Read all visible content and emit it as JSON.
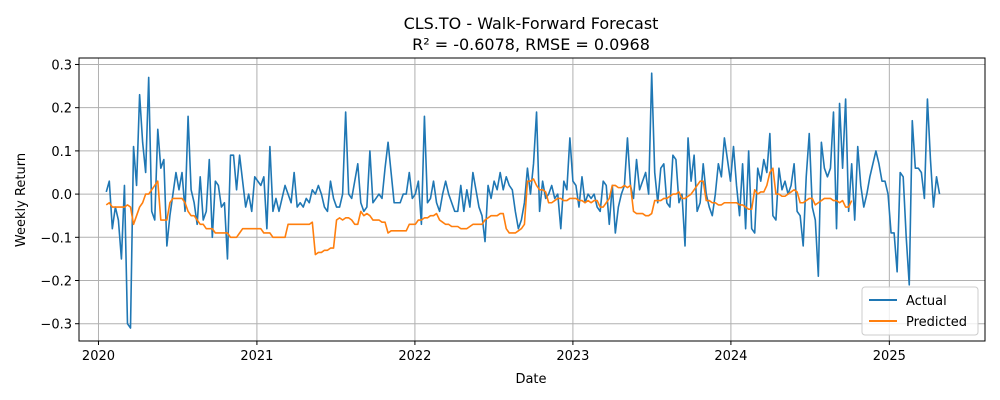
{
  "chart_data": {
    "type": "line",
    "title": "CLS.TO - Walk-Forward Forecast",
    "subtitle": "R² = -0.6078, RMSE = 0.0968",
    "xlabel": "Date",
    "ylabel": "Weekly Return",
    "xlim": [
      "2019-11-17",
      "2025-08-10"
    ],
    "ylim": [
      -0.34,
      0.315
    ],
    "grid": true,
    "legend_position": "lower-right",
    "x_ticks": [
      "2020-01-01",
      "2021-01-01",
      "2022-01-01",
      "2023-01-01",
      "2024-01-01",
      "2025-01-01"
    ],
    "x_tick_labels": [
      "2020",
      "2021",
      "2022",
      "2023",
      "2024",
      "2025"
    ],
    "y_ticks": [
      -0.3,
      -0.2,
      -0.1,
      0.0,
      0.1,
      0.2,
      0.3
    ],
    "y_tick_labels": [
      "−0.3",
      "−0.2",
      "−0.1",
      "0.0",
      "0.1",
      "0.2",
      "0.3"
    ],
    "x_start": "2020-01-19",
    "x_step_days": 7,
    "series": [
      {
        "name": "Actual",
        "color": "#1f77b4",
        "values": [
          0.005,
          0.03,
          -0.08,
          -0.03,
          -0.06,
          -0.15,
          0.02,
          -0.3,
          -0.31,
          0.11,
          0.02,
          0.23,
          0.12,
          0.05,
          0.27,
          -0.04,
          -0.06,
          0.15,
          0.06,
          0.08,
          -0.12,
          -0.05,
          0.0,
          0.05,
          0.01,
          0.05,
          -0.04,
          0.18,
          0.01,
          -0.02,
          -0.07,
          0.04,
          -0.06,
          -0.04,
          0.08,
          -0.1,
          0.03,
          0.02,
          -0.03,
          -0.02,
          -0.15,
          0.09,
          0.09,
          0.01,
          0.09,
          0.03,
          -0.03,
          0.0,
          -0.04,
          0.04,
          0.03,
          0.02,
          0.04,
          -0.08,
          0.11,
          -0.04,
          -0.01,
          -0.04,
          -0.01,
          0.02,
          0.0,
          -0.02,
          0.05,
          -0.03,
          -0.02,
          -0.03,
          -0.01,
          -0.02,
          0.01,
          0.0,
          0.02,
          0.0,
          -0.03,
          -0.04,
          0.03,
          -0.01,
          -0.03,
          -0.03,
          0.0,
          0.19,
          0.0,
          -0.01,
          0.03,
          0.07,
          -0.02,
          -0.04,
          -0.03,
          0.1,
          -0.02,
          -0.01,
          0.0,
          -0.01,
          0.06,
          0.12,
          0.05,
          -0.02,
          -0.02,
          -0.02,
          0.0,
          0.0,
          0.05,
          -0.01,
          0.0,
          0.03,
          -0.07,
          0.18,
          -0.02,
          -0.01,
          0.03,
          -0.02,
          -0.04,
          0.0,
          0.03,
          0.0,
          -0.02,
          -0.04,
          -0.04,
          0.02,
          -0.04,
          0.01,
          -0.03,
          0.05,
          0.01,
          -0.03,
          -0.05,
          -0.11,
          0.02,
          -0.01,
          0.03,
          0.01,
          0.05,
          0.01,
          0.04,
          0.02,
          0.01,
          -0.04,
          -0.08,
          -0.06,
          -0.02,
          0.06,
          0.0,
          0.07,
          0.19,
          -0.04,
          0.03,
          -0.01,
          0.0,
          0.02,
          -0.01,
          0.0,
          -0.08,
          0.03,
          0.01,
          0.13,
          0.03,
          0.02,
          -0.03,
          0.04,
          -0.02,
          0.0,
          -0.01,
          0.0,
          -0.03,
          -0.04,
          0.03,
          0.02,
          -0.07,
          0.02,
          -0.09,
          -0.03,
          0.0,
          0.02,
          0.13,
          0.02,
          -0.01,
          0.08,
          0.01,
          0.03,
          0.05,
          0.0,
          0.28,
          0.05,
          -0.02,
          0.06,
          0.07,
          -0.02,
          -0.03,
          0.09,
          0.08,
          -0.02,
          0.0,
          -0.12,
          0.13,
          0.03,
          0.09,
          -0.04,
          -0.02,
          0.07,
          0.0,
          -0.03,
          -0.05,
          0.0,
          0.07,
          0.04,
          0.13,
          0.08,
          0.03,
          0.11,
          0.02,
          -0.05,
          0.07,
          -0.08,
          0.1,
          -0.08,
          -0.09,
          0.06,
          0.03,
          0.08,
          0.05,
          0.14,
          -0.05,
          -0.06,
          0.06,
          0.01,
          0.03,
          0.0,
          0.02,
          0.07,
          -0.04,
          -0.05,
          -0.12,
          0.04,
          0.14,
          -0.03,
          -0.06,
          -0.19,
          0.12,
          0.06,
          0.04,
          0.06,
          0.19,
          -0.08,
          0.21,
          0.06,
          0.22,
          -0.04,
          0.07,
          -0.06,
          0.11,
          0.02,
          -0.03,
          0.0,
          0.04,
          0.07,
          0.1,
          0.07,
          0.03,
          0.03,
          0.0,
          -0.09,
          -0.09,
          -0.18,
          0.05,
          0.04,
          -0.1,
          -0.21,
          0.17,
          0.06,
          0.06,
          0.05,
          -0.01,
          0.22,
          0.08,
          -0.03,
          0.04,
          0.0
        ]
      },
      {
        "name": "Predicted",
        "color": "#ff7f0e",
        "values": [
          -0.025,
          -0.02,
          -0.03,
          -0.03,
          -0.03,
          -0.03,
          -0.03,
          -0.025,
          -0.03,
          -0.07,
          -0.05,
          -0.03,
          -0.02,
          0.0,
          0.0,
          0.01,
          0.02,
          0.03,
          -0.06,
          -0.06,
          -0.06,
          -0.02,
          -0.01,
          -0.01,
          -0.01,
          -0.01,
          -0.02,
          -0.04,
          -0.05,
          -0.05,
          -0.06,
          -0.07,
          -0.07,
          -0.08,
          -0.08,
          -0.08,
          -0.09,
          -0.09,
          -0.09,
          -0.09,
          -0.09,
          -0.1,
          -0.1,
          -0.1,
          -0.09,
          -0.08,
          -0.08,
          -0.08,
          -0.08,
          -0.08,
          -0.08,
          -0.08,
          -0.09,
          -0.09,
          -0.09,
          -0.1,
          -0.1,
          -0.1,
          -0.1,
          -0.1,
          -0.07,
          -0.07,
          -0.07,
          -0.07,
          -0.07,
          -0.07,
          -0.07,
          -0.07,
          -0.065,
          -0.14,
          -0.135,
          -0.135,
          -0.13,
          -0.13,
          -0.125,
          -0.125,
          -0.06,
          -0.055,
          -0.06,
          -0.055,
          -0.055,
          -0.06,
          -0.07,
          -0.07,
          -0.04,
          -0.05,
          -0.045,
          -0.05,
          -0.06,
          -0.06,
          -0.06,
          -0.065,
          -0.065,
          -0.09,
          -0.085,
          -0.085,
          -0.085,
          -0.085,
          -0.085,
          -0.085,
          -0.07,
          -0.07,
          -0.07,
          -0.06,
          -0.06,
          -0.055,
          -0.055,
          -0.05,
          -0.05,
          -0.045,
          -0.06,
          -0.065,
          -0.07,
          -0.07,
          -0.075,
          -0.075,
          -0.075,
          -0.08,
          -0.08,
          -0.08,
          -0.075,
          -0.07,
          -0.07,
          -0.07,
          -0.07,
          -0.06,
          -0.055,
          -0.05,
          -0.05,
          -0.05,
          -0.045,
          -0.045,
          -0.08,
          -0.09,
          -0.09,
          -0.09,
          -0.085,
          -0.08,
          -0.07,
          0.03,
          0.03,
          0.035,
          0.02,
          0.01,
          0.01,
          0.005,
          -0.02,
          -0.02,
          -0.015,
          -0.01,
          -0.01,
          -0.015,
          -0.015,
          -0.01,
          -0.01,
          -0.01,
          -0.015,
          -0.015,
          -0.02,
          -0.015,
          -0.02,
          -0.015,
          -0.015,
          -0.03,
          -0.03,
          -0.02,
          -0.01,
          0.02,
          0.02,
          0.015,
          0.015,
          0.02,
          0.015,
          0.02,
          -0.04,
          -0.045,
          -0.045,
          -0.045,
          -0.05,
          -0.05,
          -0.045,
          -0.015,
          -0.015,
          -0.015,
          -0.01,
          -0.01,
          -0.005,
          0.0,
          0.0,
          0.005,
          -0.01,
          -0.01,
          -0.005,
          0.0,
          0.01,
          0.02,
          0.03,
          0.03,
          -0.015,
          -0.015,
          -0.02,
          -0.02,
          -0.025,
          -0.025,
          -0.02,
          -0.02,
          -0.02,
          -0.02,
          -0.02,
          -0.025,
          -0.025,
          -0.03,
          -0.035,
          -0.035,
          0.01,
          0.0,
          0.005,
          0.005,
          0.02,
          0.05,
          0.06,
          0.0,
          0.0,
          -0.005,
          -0.005,
          0.0,
          0.005,
          0.01,
          0.005,
          -0.02,
          -0.02,
          -0.015,
          -0.01,
          -0.01,
          -0.025,
          -0.02,
          -0.015,
          -0.01,
          -0.01,
          -0.01,
          -0.015,
          -0.015,
          -0.02,
          -0.015,
          -0.03,
          -0.03,
          -0.015
        ]
      }
    ]
  }
}
